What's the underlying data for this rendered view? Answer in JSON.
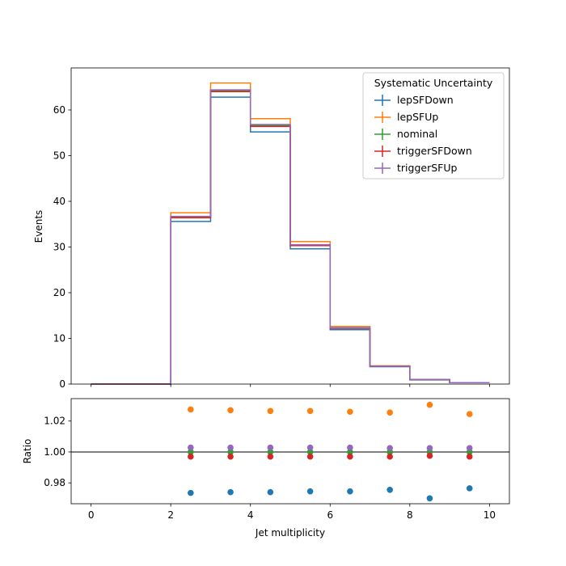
{
  "chart_data": [
    {
      "type": "step",
      "ylabel": "Events",
      "xlim": [
        -0.5,
        10.5
      ],
      "ylim": [
        0,
        69.2
      ],
      "yticks": [
        0,
        10,
        20,
        30,
        40,
        50,
        60
      ],
      "bin_edges": [
        0,
        1,
        2,
        3,
        4,
        5,
        6,
        7,
        8,
        9,
        10
      ],
      "legend": {
        "title": "Systematic Uncertainty",
        "placement": "top-right"
      },
      "series": [
        {
          "name": "lepSFDown",
          "color": "#1f77b4",
          "values": [
            0,
            0,
            35.6,
            62.8,
            55.2,
            29.6,
            11.9,
            3.8,
            0.9,
            0.3
          ]
        },
        {
          "name": "lepSFUp",
          "color": "#ff7f0e",
          "values": [
            0,
            0,
            37.5,
            65.9,
            58.1,
            31.2,
            12.6,
            4.0,
            1.0,
            0.3
          ]
        },
        {
          "name": "nominal",
          "color": "#2ca02c",
          "values": [
            0,
            0,
            36.6,
            64.2,
            56.6,
            30.4,
            12.3,
            3.9,
            1.0,
            0.3
          ]
        },
        {
          "name": "triggerSFDown",
          "color": "#d62728",
          "values": [
            0,
            0,
            36.4,
            64.0,
            56.4,
            30.3,
            12.2,
            3.9,
            1.0,
            0.3
          ]
        },
        {
          "name": "triggerSFUp",
          "color": "#9467bd",
          "values": [
            0,
            0,
            36.7,
            64.4,
            56.8,
            30.5,
            12.3,
            3.9,
            1.0,
            0.3
          ]
        }
      ]
    },
    {
      "type": "scatter",
      "xlabel": "Jet multiplicity",
      "ylabel": "Ratio",
      "xlim": [
        -0.5,
        10.5
      ],
      "ylim": [
        0.9665,
        1.0345
      ],
      "xticks": [
        0,
        2,
        4,
        6,
        8,
        10
      ],
      "yticks": [
        0.98,
        1.0,
        1.02
      ],
      "ytick_labels": [
        "0.98",
        "1.00",
        "1.02"
      ],
      "reference_line": 1.0,
      "x": [
        2.5,
        3.5,
        4.5,
        5.5,
        6.5,
        7.5,
        8.5,
        9.5
      ],
      "series": [
        {
          "name": "lepSFDown",
          "color": "#1f77b4",
          "values": [
            0.9735,
            0.974,
            0.974,
            0.9745,
            0.9745,
            0.9755,
            0.97,
            0.9765
          ]
        },
        {
          "name": "lepSFUp",
          "color": "#ff7f0e",
          "values": [
            1.0275,
            1.027,
            1.0265,
            1.0265,
            1.026,
            1.0255,
            1.0305,
            1.0245
          ]
        },
        {
          "name": "nominal",
          "color": "#2ca02c",
          "values": [
            1.0,
            1.0,
            1.0,
            1.0,
            1.0,
            1.0,
            1.0,
            1.0
          ]
        },
        {
          "name": "triggerSFDown",
          "color": "#d62728",
          "values": [
            0.997,
            0.997,
            0.997,
            0.997,
            0.997,
            0.997,
            0.9975,
            0.997
          ]
        },
        {
          "name": "triggerSFUp",
          "color": "#9467bd",
          "values": [
            1.0028,
            1.0028,
            1.0028,
            1.0028,
            1.0028,
            1.0025,
            1.0025,
            1.0025
          ]
        }
      ]
    }
  ]
}
